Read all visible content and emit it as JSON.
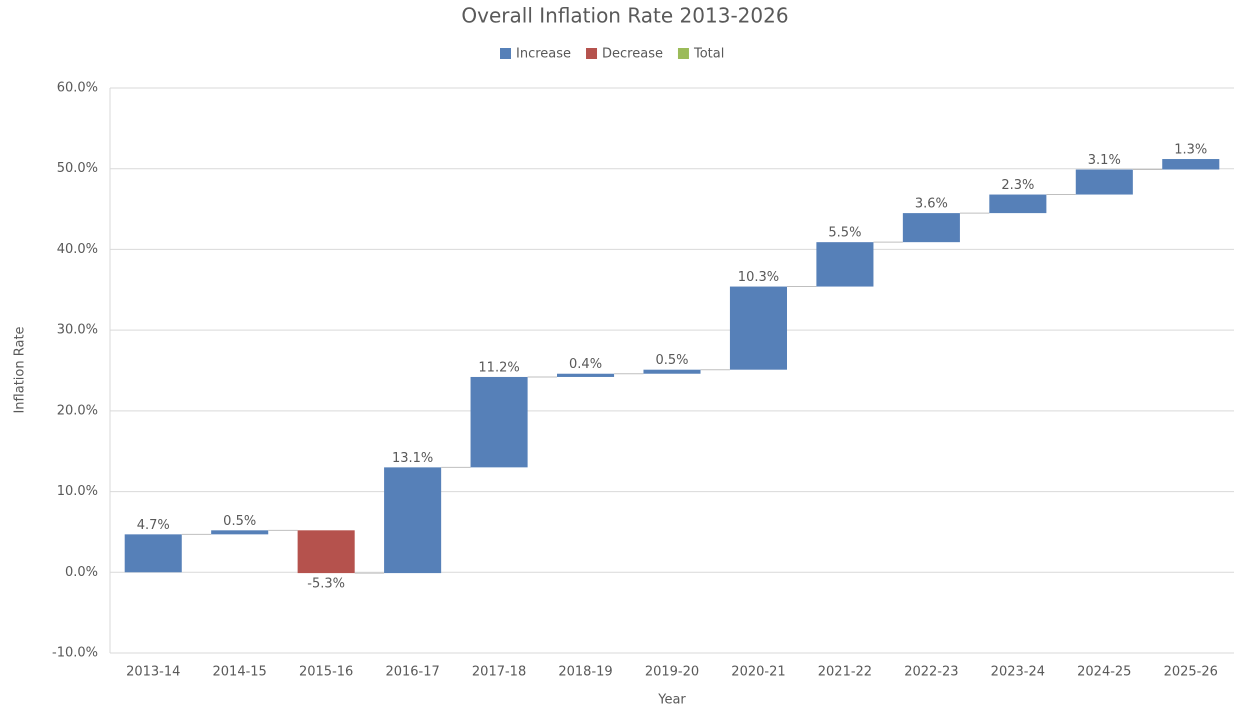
{
  "chart_data": {
    "type": "waterfall",
    "title": "Overall Inflation Rate 2013-2026",
    "x_label": "Year",
    "y_label": "Inflation Rate",
    "legend": [
      {
        "name": "Increase",
        "color": "#5680b8"
      },
      {
        "name": "Decrease",
        "color": "#b5524d"
      },
      {
        "name": "Total",
        "color": "#9bbb59"
      }
    ],
    "categories": [
      "2013-14",
      "2014-15",
      "2015-16",
      "2016-17",
      "2017-18",
      "2018-19",
      "2019-20",
      "2020-21",
      "2021-22",
      "2022-23",
      "2023-24",
      "2024-25",
      "2025-26"
    ],
    "values": [
      4.7,
      0.5,
      -5.3,
      13.1,
      11.2,
      0.4,
      0.5,
      10.3,
      5.5,
      3.6,
      2.3,
      3.1,
      1.3
    ],
    "value_labels": [
      "4.7%",
      "0.5%",
      "-5.3%",
      "13.1%",
      "11.2%",
      "0.4%",
      "0.5%",
      "10.3%",
      "5.5%",
      "3.6%",
      "2.3%",
      "3.1%",
      "1.3%"
    ],
    "ylim": [
      -10,
      60
    ],
    "yticks": [
      {
        "value": -10,
        "label": "-10.0%"
      },
      {
        "value": 0,
        "label": "0.0%"
      },
      {
        "value": 10,
        "label": "10.0%"
      },
      {
        "value": 20,
        "label": "20.0%"
      },
      {
        "value": 30,
        "label": "30.0%"
      },
      {
        "value": 40,
        "label": "40.0%"
      },
      {
        "value": 50,
        "label": "50.0%"
      },
      {
        "value": 60,
        "label": "60.0%"
      }
    ],
    "grid": true
  }
}
